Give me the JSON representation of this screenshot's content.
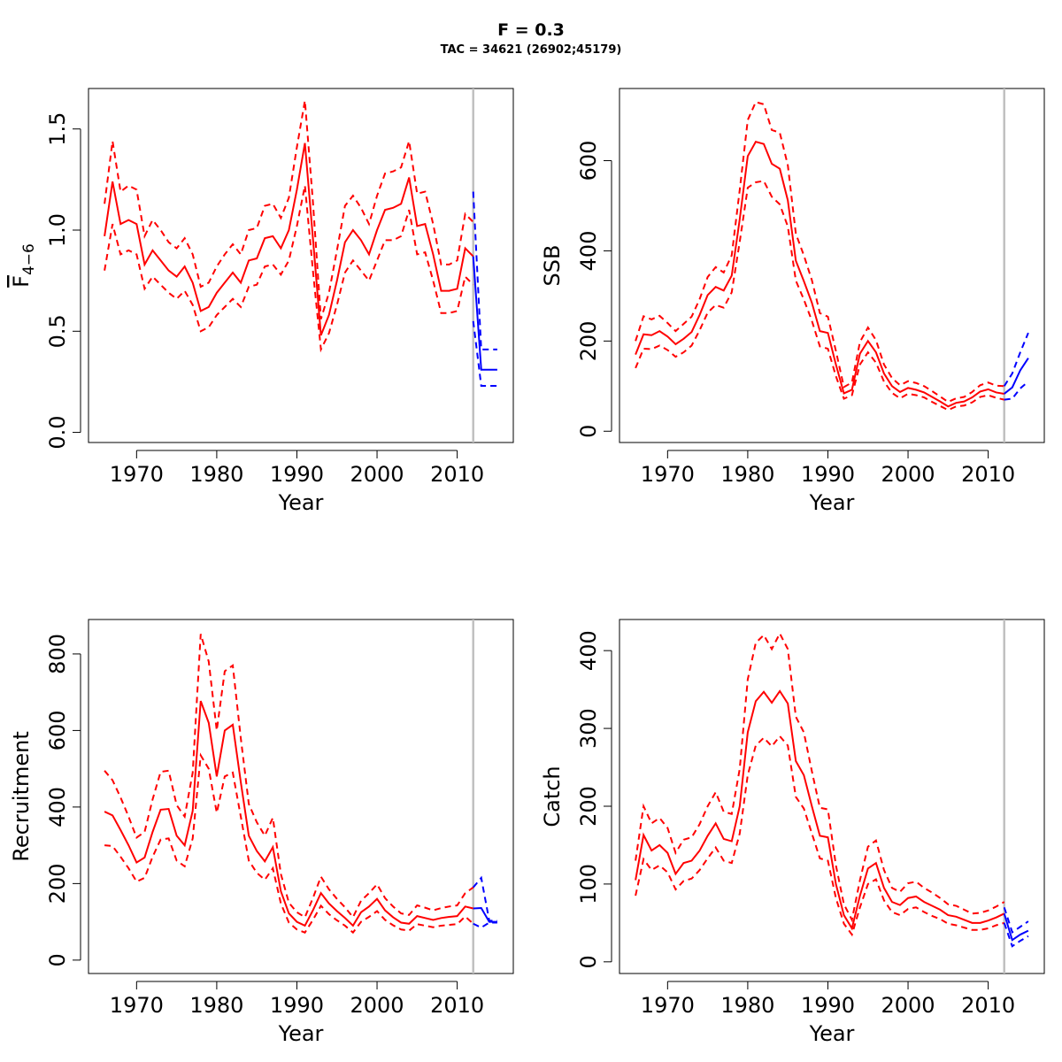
{
  "header": {
    "title": "F = 0.3",
    "subtitle": "TAC = 34621 (26902;45179)"
  },
  "colors": {
    "history": "#ff0000",
    "forecast": "#0000ff",
    "divider": "#c0c0c0",
    "frame": "#000000"
  },
  "chart_data": [
    {
      "type": "line",
      "title": "",
      "xlabel": "Year",
      "ylabel": "F̄4−6",
      "ylabel_main": "F",
      "ylabel_sub": "4−6",
      "xlim": [
        1964,
        2017
      ],
      "ylim": [
        -0.05,
        1.7
      ],
      "xticks": [
        "1970",
        "1980",
        "1990",
        "2000",
        "2010"
      ],
      "yticks": [
        "0.0",
        "0.5",
        "1.0",
        "1.5"
      ],
      "assessment_year": 2012,
      "history": {
        "x": [
          1966,
          1967,
          1968,
          1969,
          1970,
          1971,
          1972,
          1973,
          1974,
          1975,
          1976,
          1977,
          1978,
          1979,
          1980,
          1981,
          1982,
          1983,
          1984,
          1985,
          1986,
          1987,
          1988,
          1989,
          1990,
          1991,
          1992,
          1993,
          1994,
          1995,
          1996,
          1997,
          1998,
          1999,
          2000,
          2001,
          2002,
          2003,
          2004,
          2005,
          2006,
          2007,
          2008,
          2009,
          2010,
          2011,
          2012
        ],
        "estimate": [
          0.97,
          1.24,
          1.03,
          1.05,
          1.03,
          0.83,
          0.9,
          0.85,
          0.8,
          0.77,
          0.82,
          0.74,
          0.6,
          0.62,
          0.69,
          0.74,
          0.79,
          0.74,
          0.85,
          0.86,
          0.96,
          0.97,
          0.91,
          1.0,
          1.2,
          1.43,
          0.96,
          0.48,
          0.58,
          0.75,
          0.94,
          1.0,
          0.95,
          0.88,
          1.0,
          1.1,
          1.11,
          1.13,
          1.26,
          1.02,
          1.03,
          0.88,
          0.7,
          0.7,
          0.71,
          0.91,
          0.87
        ],
        "lower": [
          0.8,
          1.03,
          0.88,
          0.9,
          0.88,
          0.71,
          0.77,
          0.73,
          0.69,
          0.66,
          0.7,
          0.63,
          0.5,
          0.52,
          0.58,
          0.62,
          0.66,
          0.62,
          0.72,
          0.73,
          0.82,
          0.83,
          0.78,
          0.85,
          1.02,
          1.22,
          0.8,
          0.41,
          0.49,
          0.63,
          0.79,
          0.85,
          0.8,
          0.75,
          0.85,
          0.95,
          0.95,
          0.97,
          1.1,
          0.88,
          0.89,
          0.75,
          0.59,
          0.59,
          0.6,
          0.77,
          0.73
        ],
        "upper": [
          1.13,
          1.44,
          1.19,
          1.22,
          1.2,
          0.97,
          1.05,
          1.0,
          0.94,
          0.91,
          0.96,
          0.88,
          0.72,
          0.74,
          0.82,
          0.88,
          0.93,
          0.88,
          1.0,
          1.01,
          1.12,
          1.13,
          1.06,
          1.16,
          1.41,
          1.64,
          1.14,
          0.56,
          0.69,
          0.9,
          1.12,
          1.17,
          1.11,
          1.03,
          1.17,
          1.28,
          1.29,
          1.31,
          1.44,
          1.18,
          1.19,
          1.03,
          0.83,
          0.83,
          0.85,
          1.08,
          1.04
        ]
      },
      "forecast": {
        "x": [
          2012,
          2013,
          2014,
          2015
        ],
        "estimate": [
          0.87,
          0.31,
          0.31,
          0.31
        ],
        "lower": [
          0.55,
          0.23,
          0.23,
          0.23
        ],
        "upper": [
          1.19,
          0.41,
          0.41,
          0.41
        ]
      }
    },
    {
      "type": "line",
      "title": "",
      "xlabel": "Year",
      "ylabel": "SSB",
      "xlim": [
        1964,
        2017
      ],
      "ylim": [
        -25,
        760
      ],
      "xticks": [
        "1970",
        "1980",
        "1990",
        "2000",
        "2010"
      ],
      "yticks": [
        "0",
        "200",
        "400",
        "600"
      ],
      "assessment_year": 2012,
      "history": {
        "x": [
          1966,
          1967,
          1968,
          1969,
          1970,
          1971,
          1972,
          1973,
          1974,
          1975,
          1976,
          1977,
          1978,
          1979,
          1980,
          1981,
          1982,
          1983,
          1984,
          1985,
          1986,
          1987,
          1988,
          1989,
          1990,
          1991,
          1992,
          1993,
          1994,
          1995,
          1996,
          1997,
          1998,
          1999,
          2000,
          2001,
          2002,
          2003,
          2004,
          2005,
          2006,
          2007,
          2008,
          2009,
          2010,
          2011,
          2012
        ],
        "estimate": [
          170,
          215,
          213,
          222,
          210,
          193,
          205,
          220,
          258,
          302,
          320,
          312,
          345,
          470,
          610,
          642,
          637,
          593,
          582,
          512,
          378,
          333,
          285,
          222,
          218,
          148,
          84,
          92,
          172,
          200,
          175,
          128,
          100,
          87,
          96,
          92,
          86,
          76,
          66,
          55,
          63,
          66,
          75,
          88,
          93,
          86,
          83
        ],
        "lower": [
          140,
          183,
          182,
          190,
          180,
          165,
          175,
          190,
          224,
          263,
          280,
          274,
          308,
          420,
          540,
          552,
          555,
          520,
          503,
          454,
          334,
          292,
          245,
          188,
          183,
          122,
          72,
          80,
          148,
          175,
          152,
          110,
          85,
          73,
          83,
          80,
          75,
          65,
          56,
          47,
          55,
          57,
          64,
          76,
          80,
          74,
          70
        ],
        "upper": [
          200,
          255,
          248,
          256,
          240,
          222,
          238,
          254,
          293,
          342,
          364,
          352,
          390,
          535,
          690,
          730,
          725,
          668,
          662,
          590,
          438,
          390,
          335,
          262,
          254,
          178,
          98,
          108,
          198,
          230,
          202,
          148,
          118,
          102,
          111,
          107,
          100,
          89,
          77,
          65,
          73,
          76,
          87,
          102,
          108,
          101,
          100
        ]
      },
      "forecast": {
        "x": [
          2012,
          2013,
          2014,
          2015
        ],
        "estimate": [
          83,
          97,
          135,
          162
        ],
        "lower": [
          70,
          72,
          95,
          110
        ],
        "upper": [
          100,
          128,
          175,
          218
        ]
      }
    },
    {
      "type": "line",
      "title": "",
      "xlabel": "Year",
      "ylabel": "Recruitment",
      "xlim": [
        1964,
        2017
      ],
      "ylim": [
        -35,
        890
      ],
      "xticks": [
        "1970",
        "1980",
        "1990",
        "2000",
        "2010"
      ],
      "yticks": [
        "0",
        "200",
        "400",
        "600",
        "800"
      ],
      "assessment_year": 2012,
      "history": {
        "x": [
          1966,
          1967,
          1968,
          1969,
          1970,
          1971,
          1972,
          1973,
          1974,
          1975,
          1976,
          1977,
          1978,
          1979,
          1980,
          1981,
          1982,
          1983,
          1984,
          1985,
          1986,
          1987,
          1988,
          1989,
          1990,
          1991,
          1992,
          1993,
          1994,
          1995,
          1996,
          1997,
          1998,
          1999,
          2000,
          2001,
          2002,
          2003,
          2004,
          2005,
          2006,
          2007,
          2008,
          2009,
          2010,
          2011,
          2012
        ],
        "estimate": [
          388,
          378,
          340,
          300,
          255,
          268,
          335,
          393,
          395,
          325,
          300,
          390,
          677,
          620,
          480,
          600,
          615,
          465,
          325,
          285,
          258,
          295,
          180,
          122,
          100,
          90,
          130,
          175,
          148,
          128,
          110,
          90,
          125,
          140,
          160,
          130,
          112,
          98,
          95,
          115,
          110,
          105,
          110,
          113,
          115,
          140,
          135
        ],
        "lower": [
          300,
          298,
          270,
          240,
          205,
          215,
          270,
          315,
          318,
          260,
          245,
          318,
          535,
          500,
          385,
          480,
          490,
          375,
          260,
          228,
          210,
          240,
          148,
          98,
          80,
          72,
          105,
          142,
          120,
          104,
          90,
          72,
          100,
          113,
          128,
          105,
          91,
          80,
          77,
          94,
          90,
          86,
          90,
          92,
          94,
          114,
          95
        ],
        "upper": [
          495,
          470,
          425,
          375,
          320,
          335,
          420,
          492,
          495,
          405,
          375,
          490,
          852,
          780,
          600,
          755,
          770,
          580,
          408,
          360,
          325,
          372,
          225,
          150,
          125,
          112,
          162,
          218,
          185,
          160,
          138,
          112,
          155,
          175,
          198,
          162,
          140,
          122,
          118,
          143,
          137,
          130,
          136,
          140,
          143,
          175,
          190
        ]
      },
      "forecast": {
        "x": [
          2012,
          2013,
          2014,
          2015
        ],
        "estimate": [
          135,
          136,
          100,
          100
        ],
        "lower": [
          95,
          85,
          98,
          98
        ],
        "upper": [
          190,
          215,
          103,
          103
        ]
      }
    },
    {
      "type": "line",
      "title": "",
      "xlabel": "Year",
      "ylabel": "Catch",
      "xlim": [
        1964,
        2017
      ],
      "ylim": [
        -15,
        440
      ],
      "xticks": [
        "1970",
        "1980",
        "1990",
        "2000",
        "2010"
      ],
      "yticks": [
        "0",
        "100",
        "200",
        "300",
        "400"
      ],
      "assessment_year": 2012,
      "history": {
        "x": [
          1966,
          1967,
          1968,
          1969,
          1970,
          1971,
          1972,
          1973,
          1974,
          1975,
          1976,
          1977,
          1978,
          1979,
          1980,
          1981,
          1982,
          1983,
          1984,
          1985,
          1986,
          1987,
          1988,
          1989,
          1990,
          1991,
          1992,
          1993,
          1994,
          1995,
          1996,
          1997,
          1998,
          1999,
          2000,
          2001,
          2002,
          2003,
          2004,
          2005,
          2006,
          2007,
          2008,
          2009,
          2010,
          2011,
          2012
        ],
        "estimate": [
          105,
          163,
          143,
          150,
          140,
          113,
          127,
          130,
          143,
          162,
          178,
          158,
          155,
          200,
          295,
          335,
          347,
          333,
          348,
          332,
          258,
          240,
          200,
          162,
          160,
          100,
          60,
          43,
          85,
          120,
          127,
          95,
          77,
          73,
          82,
          84,
          77,
          72,
          67,
          60,
          58,
          54,
          50,
          50,
          53,
          57,
          62
        ],
        "lower": [
          85,
          132,
          118,
          124,
          115,
          93,
          104,
          107,
          118,
          133,
          147,
          130,
          127,
          165,
          240,
          278,
          288,
          277,
          290,
          278,
          212,
          197,
          165,
          133,
          130,
          82,
          49,
          35,
          70,
          100,
          106,
          79,
          64,
          60,
          68,
          70,
          64,
          59,
          55,
          49,
          47,
          44,
          41,
          41,
          43,
          47,
          50
        ],
        "upper": [
          130,
          200,
          178,
          185,
          172,
          140,
          157,
          160,
          177,
          200,
          218,
          193,
          190,
          248,
          363,
          410,
          420,
          402,
          422,
          402,
          315,
          295,
          245,
          198,
          196,
          124,
          74,
          54,
          105,
          148,
          156,
          118,
          95,
          90,
          101,
          103,
          95,
          89,
          82,
          74,
          72,
          67,
          62,
          63,
          66,
          71,
          77
        ]
      },
      "forecast": {
        "x": [
          2012,
          2013,
          2014,
          2015
        ],
        "estimate": [
          62,
          28,
          35,
          40
        ],
        "lower": [
          50,
          20,
          27,
          33
        ],
        "upper": [
          70,
          38,
          45,
          52
        ]
      }
    }
  ]
}
